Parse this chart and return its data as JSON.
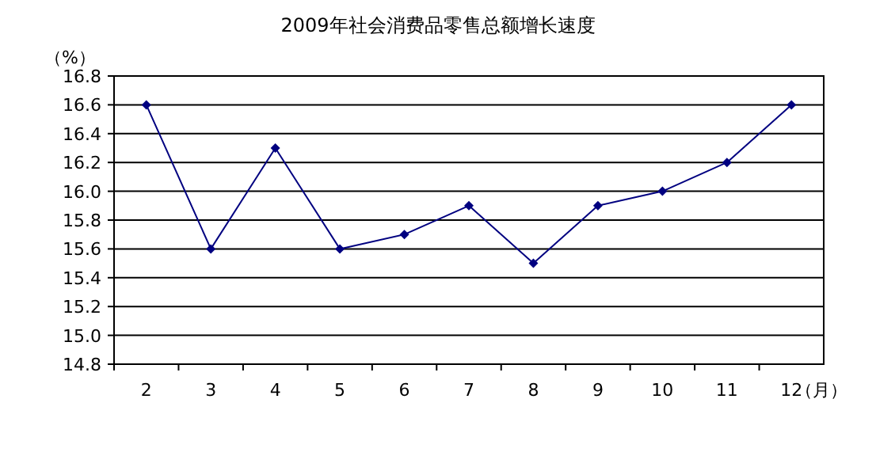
{
  "chart_data": {
    "type": "line",
    "title": "2009年社会消费品零售总额增长速度",
    "ylabel": "（%）",
    "xlabel": "（月）",
    "categories": [
      "2",
      "3",
      "4",
      "5",
      "6",
      "7",
      "8",
      "9",
      "10",
      "11",
      "12"
    ],
    "series": [
      {
        "color": "#000080",
        "values": [
          16.6,
          15.6,
          16.3,
          15.6,
          15.7,
          15.9,
          15.5,
          15.9,
          16.0,
          16.2,
          16.6
        ]
      }
    ],
    "ylim": [
      14.8,
      16.8
    ],
    "yticks": [
      14.8,
      {
        "value": 15.0,
        "label": "15.0"
      },
      15.2,
      15.4,
      15.6,
      15.8,
      {
        "value": 16.0,
        "label": "16.0"
      },
      16.2,
      16.4,
      16.6,
      16.8
    ],
    "grid": "y",
    "marker": "diamond",
    "line_style": "solid"
  }
}
